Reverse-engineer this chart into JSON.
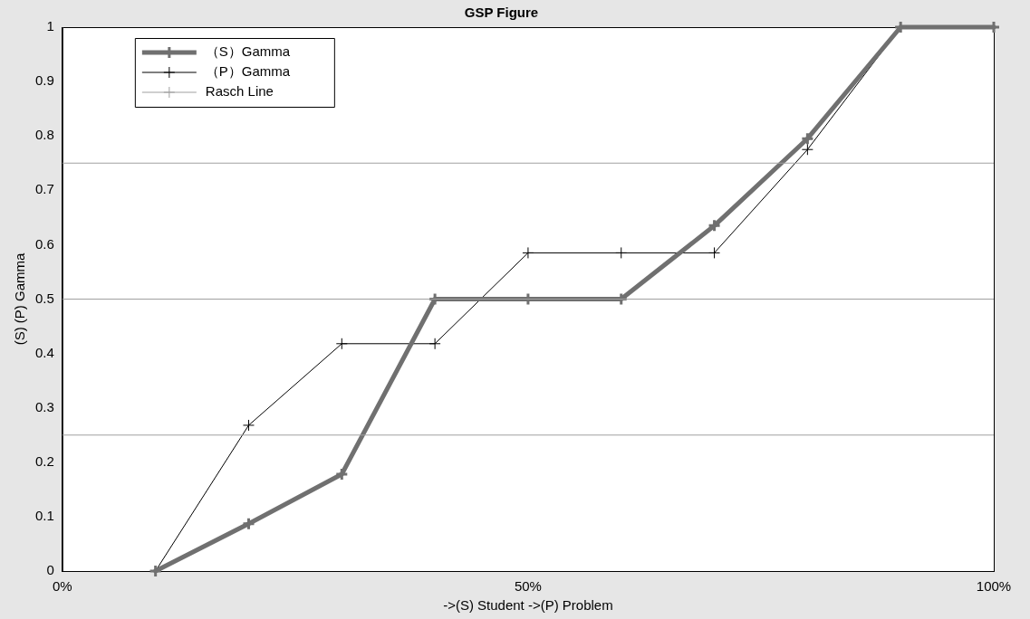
{
  "chart_data": {
    "type": "line",
    "title": "GSP Figure",
    "xlabel": "->(S) Student ->(P) Problem",
    "ylabel": "(S) (P) Gamma",
    "x": [
      10,
      20,
      30,
      40,
      50,
      60,
      70,
      80,
      90,
      100
    ],
    "series": [
      {
        "name": "（S）Gamma",
        "color": "#707070",
        "values": [
          0,
          0.087,
          0.178,
          0.5,
          0.5,
          0.5,
          0.635,
          0.795,
          1,
          1
        ]
      },
      {
        "name": "（P）Gamma",
        "color": "#000000",
        "values": [
          0,
          0.268,
          0.418,
          0.418,
          0.585,
          0.585,
          0.585,
          0.775,
          1,
          1
        ]
      }
    ],
    "ref_lines": [
      {
        "axis": "y",
        "value": 0.25,
        "label": "Rasch Line",
        "color": "#a0a0a0"
      },
      {
        "axis": "y",
        "value": 0.5,
        "color": "#a0a0a0"
      },
      {
        "axis": "y",
        "value": 0.75,
        "color": "#a0a0a0"
      }
    ],
    "xlim": [
      0,
      100
    ],
    "xticks": [
      {
        "value": 0,
        "label": "0%"
      },
      {
        "value": 50,
        "label": "50%"
      },
      {
        "value": 100,
        "label": "100%"
      }
    ],
    "ylim": [
      0,
      1
    ],
    "yticks": [
      0,
      0.1,
      0.2,
      0.3,
      0.4,
      0.5,
      0.6,
      0.7,
      0.8,
      0.9,
      1
    ],
    "grid": false,
    "legend": "top left",
    "marker": "cross",
    "line_style": "solid"
  }
}
